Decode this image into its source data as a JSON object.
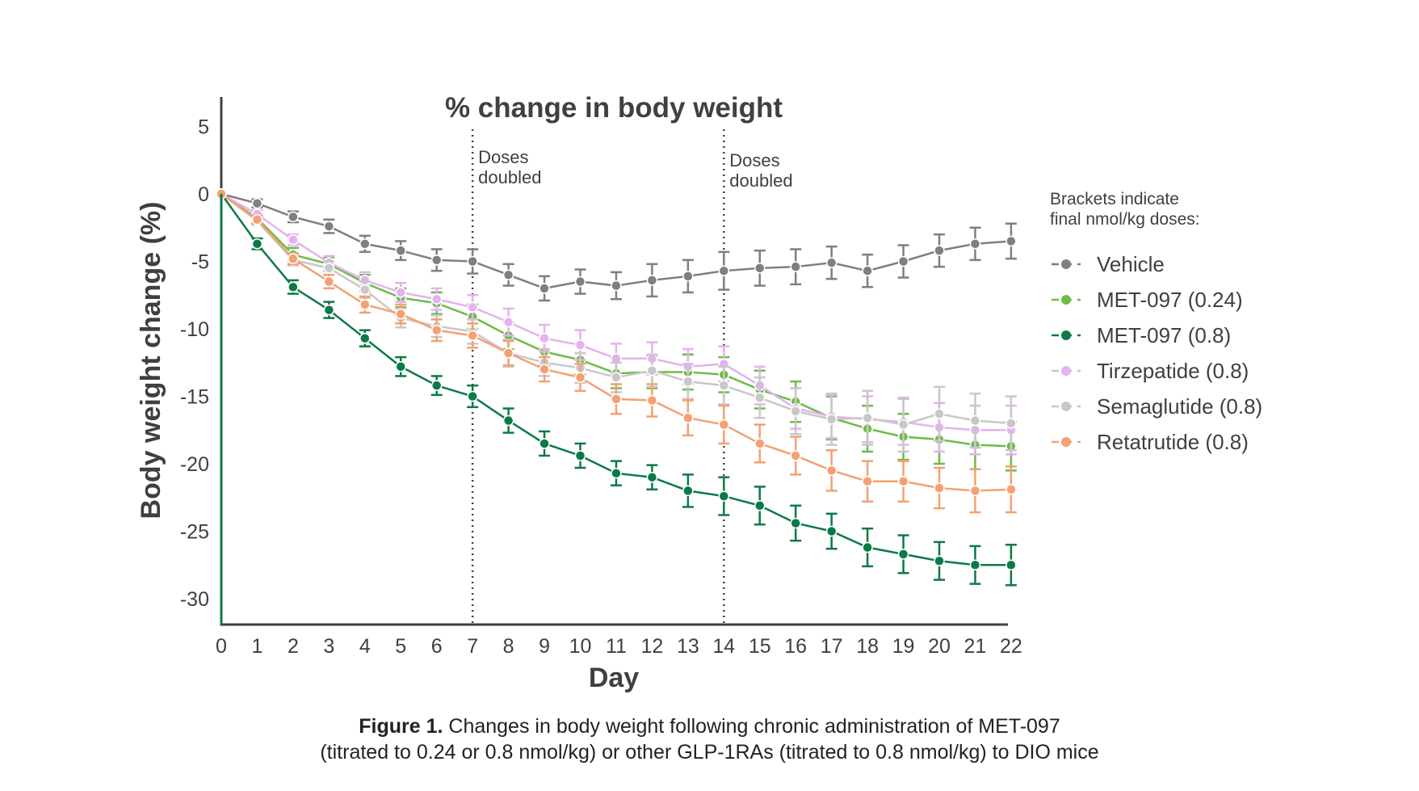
{
  "chart_data": {
    "type": "line",
    "title": "% change in body weight",
    "xlabel": "Day",
    "ylabel": "Body weight change (%)",
    "xlim": [
      0,
      22
    ],
    "ylim": [
      -32,
      7
    ],
    "x_ticks": [
      "0",
      "1",
      "2",
      "3",
      "4",
      "5",
      "6",
      "7",
      "8",
      "9",
      "10",
      "11",
      "12",
      "13",
      "14",
      "15",
      "16",
      "17",
      "18",
      "19",
      "20",
      "21",
      "22"
    ],
    "y_ticks": [
      "5",
      "0",
      "-5",
      "-10",
      "-15",
      "-20",
      "-25",
      "-30"
    ],
    "y_tick_values": [
      5,
      0,
      -5,
      -10,
      -15,
      -20,
      -25,
      -30
    ],
    "grid": false,
    "legend_title": "Brackets indicate\nfinal nmol/kg doses:",
    "legend_position": "right",
    "annotations": [
      {
        "x": 7,
        "text": "Doses\ndoubled"
      },
      {
        "x": 14,
        "text": "Doses\ndoubled"
      }
    ],
    "x": [
      0,
      1,
      2,
      3,
      4,
      5,
      6,
      7,
      8,
      9,
      10,
      11,
      12,
      13,
      14,
      15,
      16,
      17,
      18,
      19,
      20,
      21,
      22
    ],
    "series": [
      {
        "name": "Vehicle",
        "color": "#7f7f7f",
        "values": [
          0,
          -0.7,
          -1.7,
          -2.4,
          -3.7,
          -4.2,
          -4.9,
          -5.0,
          -6.0,
          -7.0,
          -6.5,
          -6.8,
          -6.4,
          -6.1,
          -5.7,
          -5.5,
          -5.4,
          -5.1,
          -5.7,
          -5.0,
          -4.2,
          -3.7,
          -3.5
        ],
        "err": [
          0,
          0.3,
          0.4,
          0.5,
          0.6,
          0.7,
          0.8,
          0.9,
          0.8,
          0.9,
          0.9,
          1.0,
          1.2,
          1.2,
          1.4,
          1.3,
          1.3,
          1.2,
          1.2,
          1.2,
          1.2,
          1.2,
          1.3
        ]
      },
      {
        "name": "MET-097 (0.24)",
        "color": "#6cbd45",
        "values": [
          0,
          -1.8,
          -4.5,
          -5.2,
          -6.6,
          -7.7,
          -8.1,
          -9.1,
          -10.5,
          -11.7,
          -12.3,
          -13.3,
          -13.2,
          -13.2,
          -13.4,
          -14.5,
          -15.4,
          -16.6,
          -17.4,
          -18.0,
          -18.2,
          -18.6,
          -18.7
        ],
        "err": [
          0,
          0.3,
          0.5,
          0.5,
          0.6,
          0.7,
          0.8,
          0.9,
          1.0,
          1.0,
          1.1,
          1.1,
          1.2,
          1.3,
          1.3,
          1.4,
          1.5,
          1.6,
          1.7,
          1.7,
          1.8,
          1.8,
          1.8
        ]
      },
      {
        "name": "MET-097 (0.8)",
        "color": "#0b7a46",
        "values": [
          0,
          -3.7,
          -6.9,
          -8.6,
          -10.7,
          -12.8,
          -14.2,
          -15.0,
          -16.8,
          -18.5,
          -19.4,
          -20.7,
          -21.0,
          -22.0,
          -22.4,
          -23.1,
          -24.4,
          -25.0,
          -26.2,
          -26.7,
          -27.2,
          -27.5,
          -27.5
        ],
        "err": [
          0,
          0.4,
          0.5,
          0.6,
          0.6,
          0.7,
          0.7,
          0.8,
          0.9,
          0.9,
          0.9,
          0.9,
          0.9,
          1.2,
          1.4,
          1.4,
          1.3,
          1.3,
          1.4,
          1.4,
          1.4,
          1.4,
          1.5
        ]
      },
      {
        "name": "Tirzepatide (0.8)",
        "color": "#e6b1ef",
        "values": [
          0,
          -1.5,
          -3.4,
          -5.1,
          -6.4,
          -7.3,
          -7.8,
          -8.4,
          -9.5,
          -10.7,
          -11.2,
          -12.2,
          -12.2,
          -12.8,
          -12.6,
          -14.2,
          -15.9,
          -16.5,
          -16.7,
          -16.9,
          -17.3,
          -17.5,
          -17.5
        ],
        "err": [
          0,
          0.3,
          0.4,
          0.5,
          0.6,
          0.7,
          0.8,
          0.9,
          1.0,
          1.0,
          1.1,
          1.1,
          1.2,
          1.3,
          1.3,
          1.4,
          1.5,
          1.6,
          1.7,
          1.7,
          1.8,
          1.8,
          1.8
        ]
      },
      {
        "name": "Semaglutide (0.8)",
        "color": "#c8c8c8",
        "values": [
          0,
          -2.0,
          -4.9,
          -5.5,
          -7.1,
          -9.2,
          -9.8,
          -10.2,
          -11.8,
          -12.5,
          -12.9,
          -13.6,
          -13.1,
          -13.9,
          -14.2,
          -15.1,
          -16.1,
          -16.7,
          -16.6,
          -17.1,
          -16.3,
          -16.8,
          -17.0
        ],
        "err": [
          0,
          0.3,
          0.4,
          0.5,
          0.6,
          0.7,
          0.8,
          0.9,
          1.0,
          1.0,
          1.1,
          1.1,
          1.2,
          1.3,
          1.4,
          1.5,
          1.7,
          1.9,
          2.0,
          2.0,
          2.0,
          2.0,
          2.0
        ]
      },
      {
        "name": "Retatrutide (0.8)",
        "color": "#f4a072",
        "values": [
          0,
          -1.9,
          -4.8,
          -6.5,
          -8.2,
          -8.9,
          -10.1,
          -10.5,
          -11.8,
          -13.0,
          -13.6,
          -15.2,
          -15.3,
          -16.6,
          -17.1,
          -18.5,
          -19.4,
          -20.5,
          -21.3,
          -21.3,
          -21.8,
          -22.0,
          -21.9
        ],
        "err": [
          0,
          0.3,
          0.4,
          0.5,
          0.6,
          0.7,
          0.8,
          0.9,
          0.9,
          0.9,
          1.0,
          1.1,
          1.2,
          1.3,
          1.4,
          1.4,
          1.4,
          1.5,
          1.5,
          1.5,
          1.5,
          1.6,
          1.7
        ]
      }
    ]
  },
  "caption": {
    "label": "Figure 1.",
    "line1": "Changes in body weight following chronic administration of MET-097",
    "line2": "(titrated to 0.24 or 0.8 nmol/kg) or other GLP-1RAs (titrated to 0.8 nmol/kg) to DIO mice"
  }
}
